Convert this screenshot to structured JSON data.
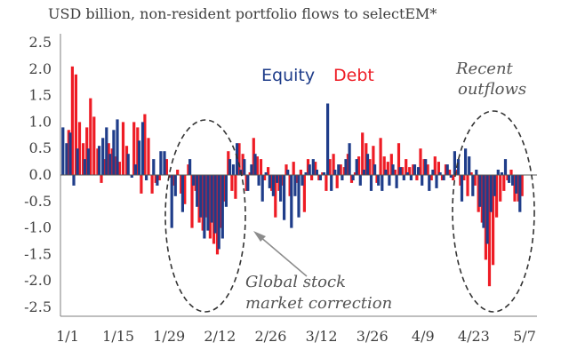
{
  "chart_data": {
    "type": "bar",
    "title": "USD billion, non-resident portfolio flows to selectEM*",
    "ylim": [
      -2.5,
      2.5
    ],
    "yticks": [
      "2.5",
      "2.0",
      "1.5",
      "1.0",
      "0.5",
      "0.0",
      "-0.5",
      "-1.0",
      "-1.5",
      "-2.0",
      "-2.5"
    ],
    "ytick_values": [
      2.5,
      2.0,
      1.5,
      1.0,
      0.5,
      0.0,
      -0.5,
      -1.0,
      -1.5,
      -2.0,
      -2.5
    ],
    "xtick_labels": [
      "1/1",
      "1/15",
      "1/29",
      "2/12",
      "2/26",
      "3/12",
      "3/26",
      "4/9",
      "4/23",
      "5/7"
    ],
    "xtick_days": [
      1,
      15,
      29,
      43,
      57,
      71,
      85,
      99,
      113,
      127
    ],
    "x_range": [
      1,
      127
    ],
    "grid": false,
    "legend_position": "top-right",
    "annotations": {
      "recent": [
        "Recent",
        "outflows"
      ],
      "correction": [
        "Global stock",
        "market correction"
      ]
    },
    "series": [
      {
        "name": "Equity",
        "color": "#1f3d8a",
        "points": [
          [
            1,
            0.9
          ],
          [
            2,
            0.6
          ],
          [
            3,
            0.8
          ],
          [
            4,
            -0.2
          ],
          [
            5,
            0.5
          ],
          [
            7,
            0.3
          ],
          [
            8,
            0.5
          ],
          [
            11,
            0.55
          ],
          [
            12,
            0.7
          ],
          [
            13,
            0.9
          ],
          [
            14,
            0.4
          ],
          [
            15,
            0.85
          ],
          [
            16,
            1.05
          ],
          [
            19,
            0.4
          ],
          [
            20,
            -0.05
          ],
          [
            21,
            0.2
          ],
          [
            22,
            0.65
          ],
          [
            23,
            1.0
          ],
          [
            24,
            -0.1
          ],
          [
            26,
            0.3
          ],
          [
            27,
            -0.2
          ],
          [
            28,
            0.45
          ],
          [
            29,
            0.45
          ],
          [
            31,
            -1.0
          ],
          [
            32,
            -0.4
          ],
          [
            34,
            -0.7
          ],
          [
            36,
            0.3
          ],
          [
            37,
            -0.2
          ],
          [
            38,
            -0.6
          ],
          [
            39,
            -0.8
          ],
          [
            40,
            -1.2
          ],
          [
            41,
            -1.05
          ],
          [
            42,
            -0.9
          ],
          [
            43,
            -1.1
          ],
          [
            44,
            -1.4
          ],
          [
            45,
            -1.2
          ],
          [
            46,
            -0.6
          ],
          [
            47,
            0.3
          ],
          [
            48,
            0.2
          ],
          [
            49,
            0.6
          ],
          [
            50,
            0.1
          ],
          [
            51,
            0.3
          ],
          [
            52,
            -0.3
          ],
          [
            53,
            0.2
          ],
          [
            54,
            0.4
          ],
          [
            55,
            -0.2
          ],
          [
            56,
            -0.5
          ],
          [
            57,
            0.05
          ],
          [
            58,
            -0.25
          ],
          [
            59,
            -0.4
          ],
          [
            60,
            -0.15
          ],
          [
            61,
            -0.5
          ],
          [
            62,
            -0.85
          ],
          [
            63,
            0.1
          ],
          [
            64,
            -1.0
          ],
          [
            65,
            -0.4
          ],
          [
            66,
            -0.8
          ],
          [
            67,
            -0.2
          ],
          [
            68,
            0.05
          ],
          [
            69,
            0.2
          ],
          [
            70,
            0.3
          ],
          [
            71,
            0.1
          ],
          [
            72,
            -0.1
          ],
          [
            73,
            0.05
          ],
          [
            74,
            1.35
          ],
          [
            75,
            -0.3
          ],
          [
            76,
            0.1
          ],
          [
            77,
            0.2
          ],
          [
            78,
            -0.1
          ],
          [
            79,
            0.3
          ],
          [
            80,
            0.6
          ],
          [
            81,
            -0.1
          ],
          [
            82,
            0.3
          ],
          [
            83,
            -0.2
          ],
          [
            84,
            0.1
          ],
          [
            85,
            0.4
          ],
          [
            86,
            -0.3
          ],
          [
            87,
            0.2
          ],
          [
            88,
            -0.2
          ],
          [
            89,
            -0.3
          ],
          [
            90,
            0.1
          ],
          [
            91,
            -0.2
          ],
          [
            92,
            0.2
          ],
          [
            93,
            -0.25
          ],
          [
            94,
            0.15
          ],
          [
            95,
            -0.1
          ],
          [
            96,
            0.05
          ],
          [
            97,
            -0.1
          ],
          [
            98,
            0.2
          ],
          [
            99,
            0.15
          ],
          [
            100,
            -0.2
          ],
          [
            101,
            0.3
          ],
          [
            102,
            -0.3
          ],
          [
            103,
            0.1
          ],
          [
            104,
            -0.25
          ],
          [
            105,
            0.05
          ],
          [
            106,
            -0.1
          ],
          [
            107,
            0.2
          ],
          [
            108,
            -0.05
          ],
          [
            109,
            0.45
          ],
          [
            110,
            0.3
          ],
          [
            111,
            -0.5
          ],
          [
            112,
            0.5
          ],
          [
            113,
            0.35
          ],
          [
            114,
            -0.4
          ],
          [
            115,
            0.1
          ],
          [
            116,
            -0.6
          ],
          [
            117,
            -1.0
          ],
          [
            118,
            -1.3
          ],
          [
            119,
            -0.7
          ],
          [
            120,
            -0.4
          ],
          [
            121,
            0.1
          ],
          [
            122,
            0.05
          ],
          [
            123,
            0.3
          ],
          [
            124,
            -0.15
          ],
          [
            125,
            -0.2
          ],
          [
            126,
            -0.35
          ],
          [
            127,
            -0.7
          ]
        ]
      },
      {
        "name": "Debt",
        "color": "#ee1c25",
        "points": [
          [
            2,
            0.85
          ],
          [
            3,
            2.05
          ],
          [
            4,
            1.9
          ],
          [
            5,
            1.0
          ],
          [
            6,
            0.6
          ],
          [
            7,
            0.9
          ],
          [
            8,
            1.45
          ],
          [
            9,
            1.1
          ],
          [
            10,
            0.5
          ],
          [
            11,
            -0.15
          ],
          [
            12,
            0.3
          ],
          [
            13,
            0.6
          ],
          [
            14,
            0.5
          ],
          [
            15,
            0.35
          ],
          [
            16,
            0.25
          ],
          [
            17,
            1.0
          ],
          [
            18,
            0.55
          ],
          [
            20,
            1.0
          ],
          [
            21,
            0.9
          ],
          [
            22,
            -0.35
          ],
          [
            23,
            1.15
          ],
          [
            24,
            0.7
          ],
          [
            25,
            -0.35
          ],
          [
            26,
            -0.15
          ],
          [
            27,
            -0.1
          ],
          [
            29,
            0.3
          ],
          [
            30,
            -0.05
          ],
          [
            31,
            -0.2
          ],
          [
            32,
            0.1
          ],
          [
            33,
            -0.35
          ],
          [
            34,
            -0.55
          ],
          [
            35,
            0.2
          ],
          [
            36,
            -1.0
          ],
          [
            37,
            -0.3
          ],
          [
            38,
            -0.9
          ],
          [
            39,
            -1.05
          ],
          [
            40,
            -0.8
          ],
          [
            41,
            -1.2
          ],
          [
            42,
            -1.3
          ],
          [
            43,
            -1.5
          ],
          [
            44,
            -1.0
          ],
          [
            45,
            -0.5
          ],
          [
            46,
            0.45
          ],
          [
            47,
            -0.3
          ],
          [
            48,
            -0.45
          ],
          [
            49,
            0.6
          ],
          [
            50,
            0.4
          ],
          [
            51,
            -0.3
          ],
          [
            52,
            0.05
          ],
          [
            53,
            0.7
          ],
          [
            54,
            0.35
          ],
          [
            55,
            0.3
          ],
          [
            56,
            -0.1
          ],
          [
            57,
            0.15
          ],
          [
            58,
            -0.3
          ],
          [
            59,
            -0.8
          ],
          [
            60,
            -0.3
          ],
          [
            61,
            -0.2
          ],
          [
            62,
            0.2
          ],
          [
            63,
            -0.4
          ],
          [
            64,
            0.25
          ],
          [
            65,
            -0.15
          ],
          [
            66,
            0.1
          ],
          [
            67,
            -0.7
          ],
          [
            68,
            0.3
          ],
          [
            69,
            -0.1
          ],
          [
            70,
            0.25
          ],
          [
            71,
            -0.1
          ],
          [
            72,
            0.05
          ],
          [
            73,
            -0.3
          ],
          [
            74,
            0.3
          ],
          [
            75,
            0.4
          ],
          [
            76,
            -0.25
          ],
          [
            77,
            0.2
          ],
          [
            78,
            0.15
          ],
          [
            79,
            0.4
          ],
          [
            80,
            -0.15
          ],
          [
            81,
            0.05
          ],
          [
            82,
            0.35
          ],
          [
            83,
            0.8
          ],
          [
            84,
            0.6
          ],
          [
            85,
            0.3
          ],
          [
            86,
            0.55
          ],
          [
            87,
            -0.15
          ],
          [
            88,
            0.7
          ],
          [
            89,
            0.35
          ],
          [
            90,
            0.25
          ],
          [
            91,
            0.4
          ],
          [
            92,
            0.1
          ],
          [
            93,
            0.6
          ],
          [
            94,
            0.15
          ],
          [
            95,
            0.3
          ],
          [
            96,
            0.15
          ],
          [
            97,
            0.2
          ],
          [
            98,
            -0.1
          ],
          [
            99,
            0.5
          ],
          [
            100,
            0.3
          ],
          [
            101,
            0.2
          ],
          [
            102,
            -0.1
          ],
          [
            103,
            0.35
          ],
          [
            104,
            0.25
          ],
          [
            105,
            -0.1
          ],
          [
            106,
            0.2
          ],
          [
            107,
            0.1
          ],
          [
            108,
            -0.1
          ],
          [
            109,
            0.1
          ],
          [
            110,
            -0.2
          ],
          [
            111,
            -0.1
          ],
          [
            112,
            -0.4
          ],
          [
            113,
            0.05
          ],
          [
            114,
            -0.2
          ],
          [
            115,
            -0.7
          ],
          [
            116,
            -0.9
          ],
          [
            117,
            -1.6
          ],
          [
            118,
            -2.1
          ],
          [
            119,
            -1.7
          ],
          [
            120,
            -0.8
          ],
          [
            121,
            -0.5
          ],
          [
            122,
            -0.3
          ],
          [
            123,
            -0.1
          ],
          [
            124,
            0.1
          ],
          [
            125,
            -0.5
          ],
          [
            126,
            -0.5
          ],
          [
            127,
            -0.4
          ]
        ]
      }
    ]
  }
}
